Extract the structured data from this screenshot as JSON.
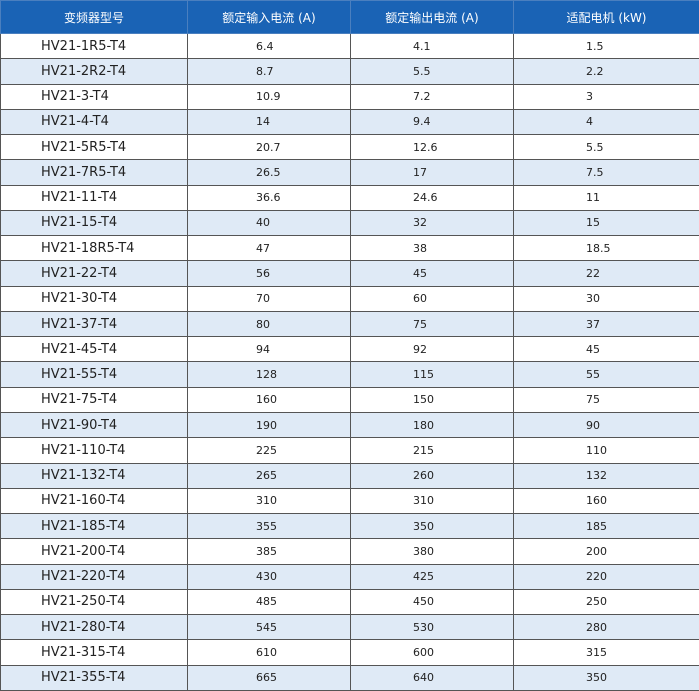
{
  "table": {
    "header": [
      "变频器型号",
      "额定输入电流 (A)",
      "额定输出电流 (A)",
      "适配电机 (kW)"
    ],
    "rows": [
      [
        "HV21-1R5-T4",
        6.4,
        4.1,
        1.5
      ],
      [
        "HV21-2R2-T4",
        8.7,
        5.5,
        2.2
      ],
      [
        "HV21-3-T4",
        10.9,
        7.2,
        3
      ],
      [
        "HV21-4-T4",
        14,
        9.4,
        4
      ],
      [
        "HV21-5R5-T4",
        20.7,
        12.6,
        5.5
      ],
      [
        "HV21-7R5-T4",
        26.5,
        17,
        7.5
      ],
      [
        "HV21-11-T4",
        36.6,
        24.6,
        11
      ],
      [
        "HV21-15-T4",
        40,
        32,
        15
      ],
      [
        "HV21-18R5-T4",
        47,
        38,
        18.5
      ],
      [
        "HV21-22-T4",
        56,
        45,
        22
      ],
      [
        "HV21-30-T4",
        70,
        60,
        30
      ],
      [
        "HV21-37-T4",
        80,
        75,
        37
      ],
      [
        "HV21-45-T4",
        94,
        92,
        45
      ],
      [
        "HV21-55-T4",
        128,
        115,
        55
      ],
      [
        "HV21-75-T4",
        160,
        150,
        75
      ],
      [
        "HV21-90-T4",
        190,
        180,
        90
      ],
      [
        "HV21-110-T4",
        225,
        215,
        110
      ],
      [
        "HV21-132-T4",
        265,
        260,
        132
      ],
      [
        "HV21-160-T4",
        310,
        310,
        160
      ],
      [
        "HV21-185-T4",
        355,
        350,
        185
      ],
      [
        "HV21-200-T4",
        385,
        380,
        200
      ],
      [
        "HV21-220-T4",
        430,
        425,
        220
      ],
      [
        "HV21-250-T4",
        485,
        450,
        250
      ],
      [
        "HV21-280-T4",
        545,
        530,
        280
      ],
      [
        "HV21-315-T4",
        610,
        600,
        315
      ],
      [
        "HV21-355-T4",
        665,
        640,
        350
      ]
    ]
  }
}
